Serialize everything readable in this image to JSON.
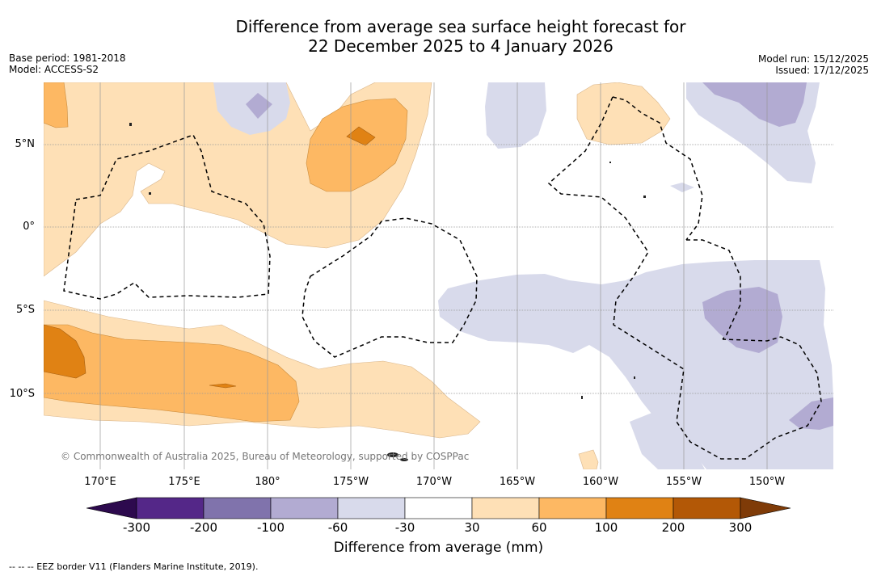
{
  "title": {
    "line1": "Difference from average sea surface height forecast for",
    "line2": "22 December 2025 to 4 January 2026"
  },
  "meta_left": {
    "base_period": "Base period: 1981-2018",
    "model": "Model: ACCESS-S2"
  },
  "meta_right": {
    "model_run": "Model run: 15/12/2025",
    "issued": "Issued: 17/12/2025"
  },
  "map": {
    "lat_labels": [
      "5°N",
      "0°",
      "5°S",
      "10°S"
    ],
    "lon_labels": [
      "170°E",
      "175°E",
      "180°",
      "175°W",
      "170°W",
      "165°W",
      "160°W",
      "155°W",
      "150°W"
    ],
    "copyright": "© Commonwealth of Australia 2025, Bureau of Meteorology, supported by COSPPac",
    "colors": {
      "neg300": "#2d0a4e",
      "neg200": "#542788",
      "neg100": "#8073ac",
      "neg60": "#b2abd2",
      "neg30": "#d8daeb",
      "neutral": "#ffffff",
      "pos30": "#fee0b6",
      "pos60": "#fdb863",
      "pos100": "#e08214",
      "pos200": "#b35806",
      "pos300": "#7f3b08"
    }
  },
  "colorbar": {
    "ticks": [
      "-300",
      "-200",
      "-100",
      "-60",
      "-30",
      "30",
      "60",
      "100",
      "200",
      "300"
    ],
    "label": "Difference from average (mm)"
  },
  "footer": {
    "eez_legend": "-- -- -- EEZ border V11 (Flanders Marine Institute, 2019)."
  }
}
